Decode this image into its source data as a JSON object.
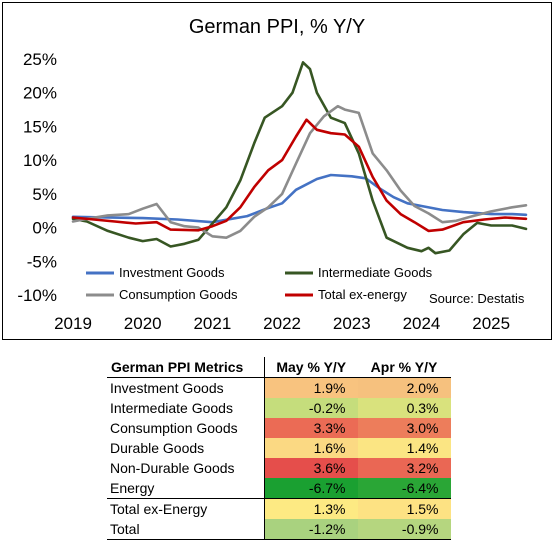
{
  "colors": {
    "investment": "#4472c4",
    "intermediate": "#375623",
    "consumption": "#8c8c8c",
    "total_ex_energy": "#c00000"
  },
  "chart_data": {
    "type": "line",
    "title": "German PPI, % Y/Y",
    "source": "Source: Destatis",
    "ylim": [
      -10,
      25
    ],
    "yticks": [
      "-10%",
      "-5%",
      "0%",
      "5%",
      "10%",
      "15%",
      "20%",
      "25%"
    ],
    "ytick_values": [
      -10,
      -5,
      0,
      5,
      10,
      15,
      20,
      25
    ],
    "xticks": [
      "2019",
      "2020",
      "2021",
      "2022",
      "2023",
      "2024",
      "2025"
    ],
    "xtick_values": [
      2019.0,
      2020.0,
      2021.0,
      2022.0,
      2023.0,
      2024.0,
      2025.0
    ],
    "xlim": [
      2019.0,
      2025.6
    ],
    "grid": false,
    "legend_position": "bottom-inside",
    "series": [
      {
        "name": "Investment Goods",
        "color_key": "investment",
        "points": [
          [
            2019.0,
            1.6
          ],
          [
            2019.5,
            1.5
          ],
          [
            2020.0,
            1.4
          ],
          [
            2020.5,
            1.2
          ],
          [
            2021.0,
            0.8
          ],
          [
            2021.5,
            1.7
          ],
          [
            2021.8,
            2.9
          ],
          [
            2022.0,
            3.6
          ],
          [
            2022.2,
            5.6
          ],
          [
            2022.5,
            7.2
          ],
          [
            2022.7,
            7.8
          ],
          [
            2023.0,
            7.6
          ],
          [
            2023.2,
            7.3
          ],
          [
            2023.4,
            5.8
          ],
          [
            2023.6,
            4.5
          ],
          [
            2023.8,
            3.6
          ],
          [
            2024.0,
            3.2
          ],
          [
            2024.3,
            2.6
          ],
          [
            2024.6,
            2.3
          ],
          [
            2025.0,
            2.0
          ],
          [
            2025.3,
            2.0
          ],
          [
            2025.5,
            1.9
          ]
        ]
      },
      {
        "name": "Intermediate Goods",
        "color_key": "intermediate",
        "points": [
          [
            2019.0,
            1.3
          ],
          [
            2019.2,
            0.9
          ],
          [
            2019.5,
            -0.5
          ],
          [
            2019.8,
            -1.5
          ],
          [
            2020.0,
            -2.0
          ],
          [
            2020.2,
            -1.7
          ],
          [
            2020.4,
            -2.8
          ],
          [
            2020.6,
            -2.4
          ],
          [
            2020.8,
            -1.8
          ],
          [
            2021.0,
            0.6
          ],
          [
            2021.2,
            3.0
          ],
          [
            2021.4,
            7.0
          ],
          [
            2021.6,
            12.5
          ],
          [
            2021.75,
            16.3
          ],
          [
            2022.0,
            18.0
          ],
          [
            2022.15,
            20.0
          ],
          [
            2022.3,
            24.5
          ],
          [
            2022.4,
            23.5
          ],
          [
            2022.5,
            20.0
          ],
          [
            2022.7,
            16.3
          ],
          [
            2022.9,
            15.5
          ],
          [
            2023.1,
            11.0
          ],
          [
            2023.3,
            4.0
          ],
          [
            2023.5,
            -1.5
          ],
          [
            2023.6,
            -2.0
          ],
          [
            2023.8,
            -3.0
          ],
          [
            2024.0,
            -3.5
          ],
          [
            2024.1,
            -3.0
          ],
          [
            2024.2,
            -3.8
          ],
          [
            2024.4,
            -3.4
          ],
          [
            2024.6,
            -1.0
          ],
          [
            2024.8,
            0.7
          ],
          [
            2025.0,
            0.3
          ],
          [
            2025.3,
            0.3
          ],
          [
            2025.5,
            -0.2
          ]
        ]
      },
      {
        "name": "Consumption Goods",
        "color_key": "consumption",
        "points": [
          [
            2019.0,
            0.9
          ],
          [
            2019.2,
            1.3
          ],
          [
            2019.5,
            1.8
          ],
          [
            2019.8,
            2.0
          ],
          [
            2020.0,
            2.8
          ],
          [
            2020.2,
            3.5
          ],
          [
            2020.4,
            0.8
          ],
          [
            2020.6,
            0.2
          ],
          [
            2020.8,
            0.0
          ],
          [
            2021.0,
            -1.3
          ],
          [
            2021.2,
            -1.5
          ],
          [
            2021.4,
            -0.5
          ],
          [
            2021.6,
            1.6
          ],
          [
            2021.8,
            3.0
          ],
          [
            2022.0,
            5.0
          ],
          [
            2022.2,
            9.5
          ],
          [
            2022.4,
            14.0
          ],
          [
            2022.6,
            16.5
          ],
          [
            2022.8,
            18.0
          ],
          [
            2022.9,
            17.5
          ],
          [
            2023.1,
            17.0
          ],
          [
            2023.3,
            11.0
          ],
          [
            2023.5,
            8.5
          ],
          [
            2023.7,
            5.5
          ],
          [
            2023.9,
            3.2
          ],
          [
            2024.1,
            2.1
          ],
          [
            2024.3,
            0.8
          ],
          [
            2024.5,
            1.0
          ],
          [
            2024.7,
            1.6
          ],
          [
            2025.0,
            2.4
          ],
          [
            2025.3,
            3.0
          ],
          [
            2025.5,
            3.3
          ]
        ]
      },
      {
        "name": "Total ex-energy",
        "color_key": "total_ex_energy",
        "points": [
          [
            2019.0,
            1.5
          ],
          [
            2019.3,
            1.2
          ],
          [
            2019.6,
            0.9
          ],
          [
            2019.9,
            0.6
          ],
          [
            2020.2,
            0.8
          ],
          [
            2020.4,
            -0.3
          ],
          [
            2020.8,
            -0.4
          ],
          [
            2021.0,
            0.2
          ],
          [
            2021.2,
            1.0
          ],
          [
            2021.4,
            3.0
          ],
          [
            2021.6,
            6.0
          ],
          [
            2021.8,
            8.5
          ],
          [
            2022.0,
            10.0
          ],
          [
            2022.2,
            13.5
          ],
          [
            2022.35,
            16.0
          ],
          [
            2022.5,
            14.5
          ],
          [
            2022.7,
            14.0
          ],
          [
            2022.9,
            13.8
          ],
          [
            2023.1,
            12.0
          ],
          [
            2023.3,
            7.5
          ],
          [
            2023.5,
            4.0
          ],
          [
            2023.7,
            2.0
          ],
          [
            2023.9,
            0.8
          ],
          [
            2024.1,
            -0.5
          ],
          [
            2024.3,
            -0.3
          ],
          [
            2024.6,
            0.8
          ],
          [
            2024.9,
            1.2
          ],
          [
            2025.2,
            1.5
          ],
          [
            2025.5,
            1.3
          ]
        ]
      }
    ]
  },
  "table": {
    "headers": [
      "German PPI Metrics",
      "May % Y/Y",
      "Apr % Y/Y"
    ],
    "rows": [
      {
        "label": "Investment Goods",
        "may": "1.9%",
        "apr": "2.0%",
        "may_color": "#f8c37f",
        "apr_color": "#f6c17e"
      },
      {
        "label": "Intermediate Goods",
        "may": "-0.2%",
        "apr": "0.3%",
        "may_color": "#c5dd7c",
        "apr_color": "#d9e27d"
      },
      {
        "label": "Consumption Goods",
        "may": "3.3%",
        "apr": "3.0%",
        "may_color": "#eb6b55",
        "apr_color": "#ed7d5b"
      },
      {
        "label": "Durable Goods",
        "may": "1.6%",
        "apr": "1.4%",
        "may_color": "#fbd983",
        "apr_color": "#fbe583"
      },
      {
        "label": "Non-Durable Goods",
        "may": "3.6%",
        "apr": "3.2%",
        "may_color": "#e54e4b",
        "apr_color": "#ea6754"
      },
      {
        "label": "Energy",
        "may": "-6.7%",
        "apr": "-6.4%",
        "may_color": "#1aa031",
        "apr_color": "#2aa636"
      },
      {
        "label": "Total ex-Energy",
        "may": "1.3%",
        "apr": "1.5%",
        "may_color": "#fdea83",
        "apr_color": "#fde283"
      },
      {
        "label": "Total",
        "may": "-1.2%",
        "apr": "-0.9%",
        "may_color": "#a9d27f",
        "apr_color": "#b5d67f"
      }
    ]
  }
}
